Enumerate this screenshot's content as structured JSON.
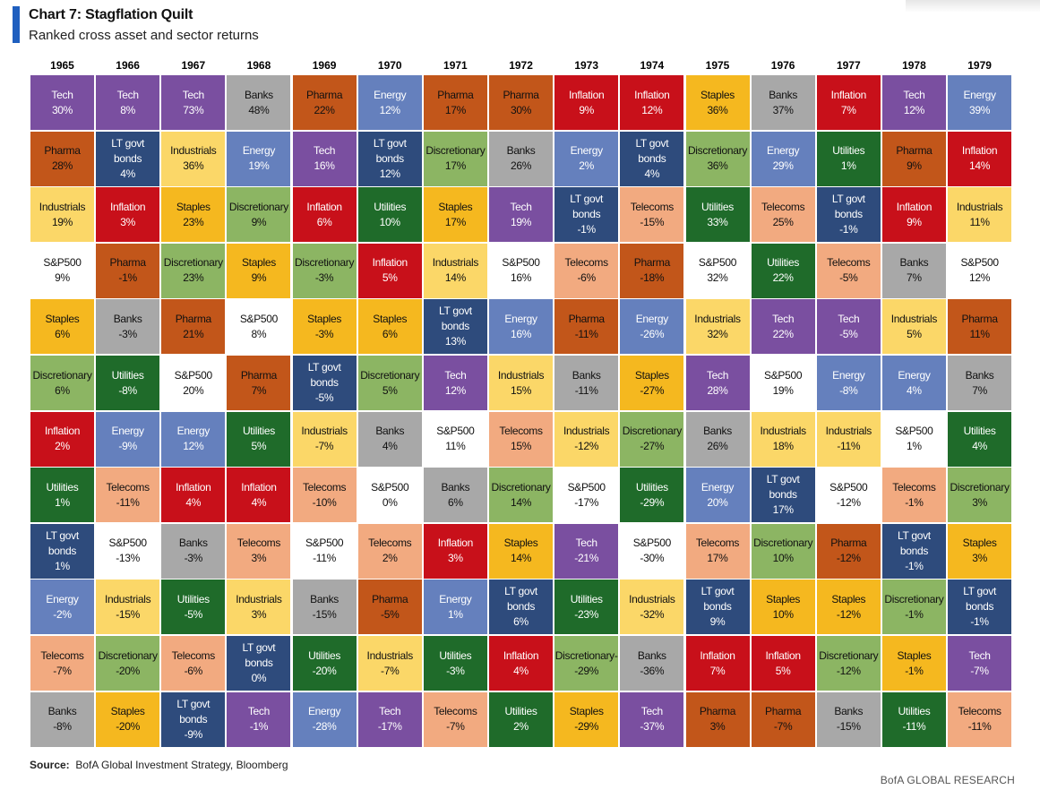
{
  "title": "Chart 7: Stagflation Quilt",
  "subtitle": "Ranked cross asset and sector returns",
  "source_label": "Source:",
  "source_text": "BofA Global Investment Strategy, Bloomberg",
  "footer": "BofA GLOBAL RESEARCH",
  "colors": {
    "Tech": {
      "bg": "#7a4fa0",
      "fg": "#ffffff"
    },
    "Pharma": {
      "bg": "#c2561a",
      "fg": "#111111"
    },
    "Industrials": {
      "bg": "#fbd768",
      "fg": "#111111"
    },
    "S&P500": {
      "bg": "#ffffff",
      "fg": "#111111"
    },
    "Staples": {
      "bg": "#f5b81f",
      "fg": "#111111"
    },
    "Discretionary": {
      "bg": "#8cb563",
      "fg": "#111111"
    },
    "Inflation": {
      "bg": "#c8101a",
      "fg": "#ffffff"
    },
    "Utilities": {
      "bg": "#1f6b2a",
      "fg": "#ffffff"
    },
    "LT govt bonds": {
      "bg": "#2e4b7c",
      "fg": "#ffffff"
    },
    "Energy": {
      "bg": "#6580bd",
      "fg": "#ffffff"
    },
    "Telecoms": {
      "bg": "#f2aa80",
      "fg": "#111111"
    },
    "Banks": {
      "bg": "#a8a8a8",
      "fg": "#111111"
    }
  },
  "chart_data": {
    "type": "table",
    "title": "Chart 7: Stagflation Quilt",
    "subtitle": "Ranked cross asset and sector returns",
    "columns": [
      {
        "year": "1965",
        "cells": [
          {
            "label": "Tech",
            "value": "30%"
          },
          {
            "label": "Pharma",
            "value": "28%"
          },
          {
            "label": "Industrials",
            "value": "19%"
          },
          {
            "label": "S&P500",
            "value": "9%"
          },
          {
            "label": "Staples",
            "value": "6%"
          },
          {
            "label": "Discretionary",
            "value": "6%"
          },
          {
            "label": "Inflation",
            "value": "2%"
          },
          {
            "label": "Utilities",
            "value": "1%"
          },
          {
            "label": "LT govt bonds",
            "value": "1%"
          },
          {
            "label": "Energy",
            "value": "-2%"
          },
          {
            "label": "Telecoms",
            "value": "-7%"
          },
          {
            "label": "Banks",
            "value": "-8%"
          }
        ]
      },
      {
        "year": "1966",
        "cells": [
          {
            "label": "Tech",
            "value": "8%"
          },
          {
            "label": "LT govt bonds",
            "value": "4%"
          },
          {
            "label": "Inflation",
            "value": "3%"
          },
          {
            "label": "Pharma",
            "value": "-1%"
          },
          {
            "label": "Banks",
            "value": "-3%"
          },
          {
            "label": "Utilities",
            "value": "-8%"
          },
          {
            "label": "Energy",
            "value": "-9%"
          },
          {
            "label": "Telecoms",
            "value": "-11%"
          },
          {
            "label": "S&P500",
            "value": "-13%"
          },
          {
            "label": "Industrials",
            "value": "-15%"
          },
          {
            "label": "Discretionary",
            "value": "-20%"
          },
          {
            "label": "Staples",
            "value": "-20%"
          }
        ]
      },
      {
        "year": "1967",
        "cells": [
          {
            "label": "Tech",
            "value": "73%"
          },
          {
            "label": "Industrials",
            "value": "36%"
          },
          {
            "label": "Staples",
            "value": "23%"
          },
          {
            "label": "Discretionary",
            "value": "23%"
          },
          {
            "label": "Pharma",
            "value": "21%"
          },
          {
            "label": "S&P500",
            "value": "20%"
          },
          {
            "label": "Energy",
            "value": "12%"
          },
          {
            "label": "Inflation",
            "value": "4%"
          },
          {
            "label": "Banks",
            "value": "-3%"
          },
          {
            "label": "Utilities",
            "value": "-5%"
          },
          {
            "label": "Telecoms",
            "value": "-6%"
          },
          {
            "label": "LT govt bonds",
            "value": "-9%"
          }
        ]
      },
      {
        "year": "1968",
        "cells": [
          {
            "label": "Banks",
            "value": "48%"
          },
          {
            "label": "Energy",
            "value": "19%"
          },
          {
            "label": "Discretionary",
            "value": "9%"
          },
          {
            "label": "Staples",
            "value": "9%"
          },
          {
            "label": "S&P500",
            "value": "8%"
          },
          {
            "label": "Pharma",
            "value": "7%"
          },
          {
            "label": "Utilities",
            "value": "5%"
          },
          {
            "label": "Inflation",
            "value": "4%"
          },
          {
            "label": "Telecoms",
            "value": "3%"
          },
          {
            "label": "Industrials",
            "value": "3%"
          },
          {
            "label": "LT govt bonds",
            "value": "0%"
          },
          {
            "label": "Tech",
            "value": "-1%"
          }
        ]
      },
      {
        "year": "1969",
        "cells": [
          {
            "label": "Pharma",
            "value": "22%"
          },
          {
            "label": "Tech",
            "value": "16%"
          },
          {
            "label": "Inflation",
            "value": "6%"
          },
          {
            "label": "Discretionary",
            "value": "-3%"
          },
          {
            "label": "Staples",
            "value": "-3%"
          },
          {
            "label": "LT govt bonds",
            "value": "-5%"
          },
          {
            "label": "Industrials",
            "value": "-7%"
          },
          {
            "label": "Telecoms",
            "value": "-10%"
          },
          {
            "label": "S&P500",
            "value": "-11%"
          },
          {
            "label": "Banks",
            "value": "-15%"
          },
          {
            "label": "Utilities",
            "value": "-20%"
          },
          {
            "label": "Energy",
            "value": "-28%"
          }
        ]
      },
      {
        "year": "1970",
        "cells": [
          {
            "label": "Energy",
            "value": "12%"
          },
          {
            "label": "LT govt bonds",
            "value": "12%"
          },
          {
            "label": "Utilities",
            "value": "10%"
          },
          {
            "label": "Inflation",
            "value": "5%"
          },
          {
            "label": "Staples",
            "value": "6%"
          },
          {
            "label": "Discretionary",
            "value": "5%"
          },
          {
            "label": "Banks",
            "value": "4%"
          },
          {
            "label": "S&P500",
            "value": "0%"
          },
          {
            "label": "Telecoms",
            "value": "2%"
          },
          {
            "label": "Pharma",
            "value": "-5%"
          },
          {
            "label": "Industrials",
            "value": "-7%"
          },
          {
            "label": "Tech",
            "value": "-17%"
          }
        ]
      },
      {
        "year": "1971",
        "cells": [
          {
            "label": "Pharma",
            "value": "17%"
          },
          {
            "label": "Discretionary",
            "value": "17%"
          },
          {
            "label": "Staples",
            "value": "17%"
          },
          {
            "label": "Industrials",
            "value": "14%"
          },
          {
            "label": "LT govt bonds",
            "value": "13%"
          },
          {
            "label": "Tech",
            "value": "12%"
          },
          {
            "label": "S&P500",
            "value": "11%"
          },
          {
            "label": "Banks",
            "value": "6%"
          },
          {
            "label": "Inflation",
            "value": "3%"
          },
          {
            "label": "Energy",
            "value": "1%"
          },
          {
            "label": "Utilities",
            "value": "-3%"
          },
          {
            "label": "Telecoms",
            "value": "-7%"
          }
        ]
      },
      {
        "year": "1972",
        "cells": [
          {
            "label": "Pharma",
            "value": "30%"
          },
          {
            "label": "Banks",
            "value": "26%"
          },
          {
            "label": "Tech",
            "value": "19%"
          },
          {
            "label": "S&P500",
            "value": "16%"
          },
          {
            "label": "Energy",
            "value": "16%"
          },
          {
            "label": "Industrials",
            "value": "15%"
          },
          {
            "label": "Telecoms",
            "value": "15%"
          },
          {
            "label": "Discretionary",
            "value": "14%"
          },
          {
            "label": "Staples",
            "value": "14%"
          },
          {
            "label": "LT govt bonds",
            "value": "6%"
          },
          {
            "label": "Inflation",
            "value": "4%"
          },
          {
            "label": "Utilities",
            "value": "2%"
          }
        ]
      },
      {
        "year": "1973",
        "cells": [
          {
            "label": "Inflation",
            "value": "9%"
          },
          {
            "label": "Energy",
            "value": "2%"
          },
          {
            "label": "LT govt bonds",
            "value": "-1%"
          },
          {
            "label": "Telecoms",
            "value": "-6%"
          },
          {
            "label": "Pharma",
            "value": "-11%"
          },
          {
            "label": "Banks",
            "value": "-11%"
          },
          {
            "label": "Industrials",
            "value": "-12%"
          },
          {
            "label": "S&P500",
            "value": "-17%"
          },
          {
            "label": "Tech",
            "value": "-21%"
          },
          {
            "label": "Utilities",
            "value": "-23%"
          },
          {
            "label": "Discretionary-",
            "value": "-29%"
          },
          {
            "label": "Staples",
            "value": "-29%"
          }
        ]
      },
      {
        "year": "1974",
        "cells": [
          {
            "label": "Inflation",
            "value": "12%"
          },
          {
            "label": "LT govt bonds",
            "value": "4%"
          },
          {
            "label": "Telecoms",
            "value": "-15%"
          },
          {
            "label": "Pharma",
            "value": "-18%"
          },
          {
            "label": "Energy",
            "value": "-26%"
          },
          {
            "label": "Staples",
            "value": "-27%"
          },
          {
            "label": "Discretionary",
            "value": "-27%"
          },
          {
            "label": "Utilities",
            "value": "-29%"
          },
          {
            "label": "S&P500",
            "value": "-30%"
          },
          {
            "label": "Industrials",
            "value": "-32%"
          },
          {
            "label": "Banks",
            "value": "-36%"
          },
          {
            "label": "Tech",
            "value": "-37%"
          }
        ]
      },
      {
        "year": "1975",
        "cells": [
          {
            "label": "Staples",
            "value": "36%"
          },
          {
            "label": "Discretionary",
            "value": "36%"
          },
          {
            "label": "Utilities",
            "value": "33%"
          },
          {
            "label": "S&P500",
            "value": "32%"
          },
          {
            "label": "Industrials",
            "value": "32%"
          },
          {
            "label": "Tech",
            "value": "28%"
          },
          {
            "label": "Banks",
            "value": "26%"
          },
          {
            "label": "Energy",
            "value": "20%"
          },
          {
            "label": "Telecoms",
            "value": "17%"
          },
          {
            "label": "LT govt bonds",
            "value": "9%"
          },
          {
            "label": "Inflation",
            "value": "7%"
          },
          {
            "label": "Pharma",
            "value": "3%"
          }
        ]
      },
      {
        "year": "1976",
        "cells": [
          {
            "label": "Banks",
            "value": "37%"
          },
          {
            "label": "Energy",
            "value": "29%"
          },
          {
            "label": "Telecoms",
            "value": "25%"
          },
          {
            "label": "Utilities",
            "value": "22%"
          },
          {
            "label": "Tech",
            "value": "22%"
          },
          {
            "label": "S&P500",
            "value": "19%"
          },
          {
            "label": "Industrials",
            "value": "18%"
          },
          {
            "label": "LT govt bonds",
            "value": "17%"
          },
          {
            "label": "Discretionary",
            "value": "10%"
          },
          {
            "label": "Staples",
            "value": "10%"
          },
          {
            "label": "Inflation",
            "value": "5%"
          },
          {
            "label": "Pharma",
            "value": "-7%"
          }
        ]
      },
      {
        "year": "1977",
        "cells": [
          {
            "label": "Inflation",
            "value": "7%"
          },
          {
            "label": "Utilities",
            "value": "1%"
          },
          {
            "label": "LT govt bonds",
            "value": "-1%"
          },
          {
            "label": "Telecoms",
            "value": "-5%"
          },
          {
            "label": "Tech",
            "value": "-5%"
          },
          {
            "label": "Energy",
            "value": "-8%"
          },
          {
            "label": "Industrials",
            "value": "-11%"
          },
          {
            "label": "S&P500",
            "value": "-12%"
          },
          {
            "label": "Pharma",
            "value": "-12%"
          },
          {
            "label": "Staples",
            "value": "-12%"
          },
          {
            "label": "Discretionary",
            "value": "-12%"
          },
          {
            "label": "Banks",
            "value": "-15%"
          }
        ]
      },
      {
        "year": "1978",
        "cells": [
          {
            "label": "Tech",
            "value": "12%"
          },
          {
            "label": "Pharma",
            "value": "9%"
          },
          {
            "label": "Inflation",
            "value": "9%"
          },
          {
            "label": "Banks",
            "value": "7%"
          },
          {
            "label": "Industrials",
            "value": "5%"
          },
          {
            "label": "Energy",
            "value": "4%"
          },
          {
            "label": "S&P500",
            "value": "1%"
          },
          {
            "label": "Telecoms",
            "value": "-1%"
          },
          {
            "label": "LT govt bonds",
            "value": "-1%"
          },
          {
            "label": "Discretionary",
            "value": "-1%"
          },
          {
            "label": "Staples",
            "value": "-1%"
          },
          {
            "label": "Utilities",
            "value": "-11%"
          }
        ]
      },
      {
        "year": "1979",
        "cells": [
          {
            "label": "Energy",
            "value": "39%"
          },
          {
            "label": "Inflation",
            "value": "14%"
          },
          {
            "label": "Industrials",
            "value": "11%"
          },
          {
            "label": "S&P500",
            "value": "12%"
          },
          {
            "label": "Pharma",
            "value": "11%"
          },
          {
            "label": "Banks",
            "value": "7%"
          },
          {
            "label": "Utilities",
            "value": "4%"
          },
          {
            "label": "Discretionary",
            "value": "3%"
          },
          {
            "label": "Staples",
            "value": "3%"
          },
          {
            "label": "LT govt bonds",
            "value": "-1%"
          },
          {
            "label": "Tech",
            "value": "-7%"
          },
          {
            "label": "Telecoms",
            "value": "-11%"
          }
        ]
      }
    ]
  }
}
